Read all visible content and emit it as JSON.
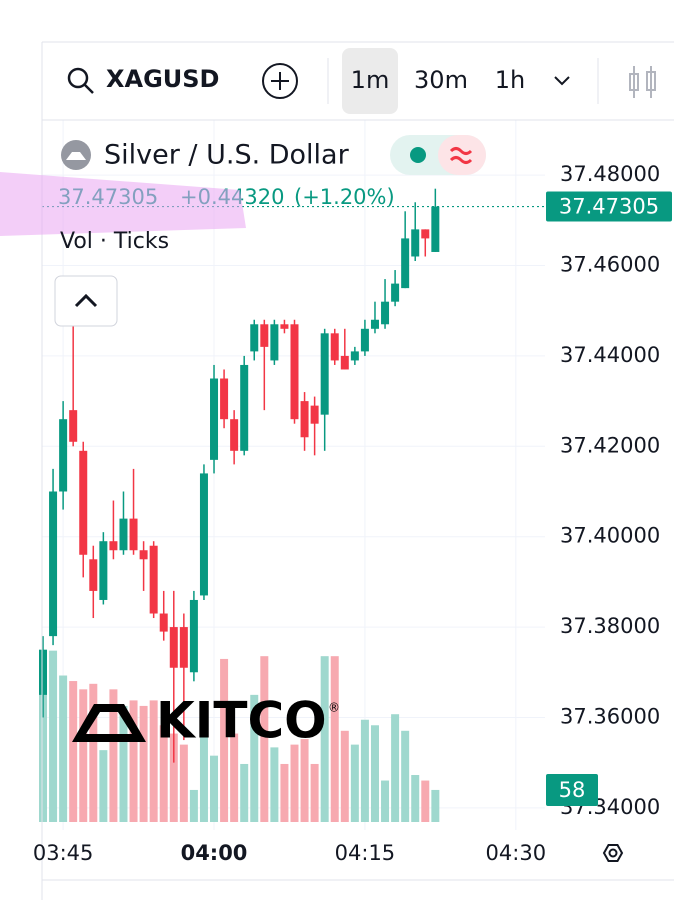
{
  "toolbar": {
    "symbol": "XAGUSD",
    "intervals": [
      "1m",
      "30m",
      "1h"
    ]
  },
  "chart_data": {
    "type": "candlestick",
    "title": "Silver / U.S. Dollar",
    "volume_label": "Vol · Ticks",
    "watermark": "KITCO",
    "watermark_mark": "®",
    "change": {
      "value": 0.4432,
      "label": "+0.44320"
    },
    "change_pct": {
      "value": 1.2,
      "label": "(+1.20%)"
    },
    "up_color": "#089981",
    "down_color": "#f23645",
    "up_volume_color": "#9fd8ce",
    "down_volume_color": "#f7a9b0",
    "x": [
      "03:43",
      "03:44",
      "03:45",
      "03:46",
      "03:47",
      "03:48",
      "03:49",
      "03:50",
      "03:51",
      "03:52",
      "03:53",
      "03:54",
      "03:55",
      "03:56",
      "03:57",
      "03:58",
      "03:59",
      "04:00",
      "04:01",
      "04:02",
      "04:03",
      "04:04",
      "04:05",
      "04:06",
      "04:07",
      "04:08",
      "04:09",
      "04:10",
      "04:11",
      "04:12",
      "04:13",
      "04:14",
      "04:15",
      "04:16",
      "04:17",
      "04:18",
      "04:19",
      "04:20",
      "04:21",
      "04:22"
    ],
    "open": [
      37.365,
      37.378,
      37.41,
      37.428,
      37.419,
      37.395,
      37.386,
      37.399,
      37.397,
      37.404,
      37.397,
      37.398,
      37.383,
      37.38,
      37.38,
      37.37,
      37.387,
      37.417,
      37.435,
      37.426,
      37.419,
      37.441,
      37.447,
      37.439,
      37.447,
      37.447,
      37.43,
      37.429,
      37.427,
      37.445,
      37.44,
      37.439,
      37.441,
      37.446,
      37.447,
      37.452,
      37.455,
      37.462,
      37.468,
      37.463
    ],
    "high": [
      37.378,
      37.415,
      37.43,
      37.448,
      37.421,
      37.398,
      37.401,
      37.408,
      37.41,
      37.415,
      37.399,
      37.399,
      37.388,
      37.388,
      37.383,
      37.388,
      37.416,
      37.438,
      37.437,
      37.428,
      37.44,
      37.448,
      37.448,
      37.448,
      37.448,
      37.448,
      37.432,
      37.431,
      37.446,
      37.446,
      37.446,
      37.442,
      37.448,
      37.452,
      37.457,
      37.459,
      37.472,
      37.474,
      37.468,
      37.477
    ],
    "low": [
      37.36,
      37.376,
      37.406,
      37.42,
      37.391,
      37.382,
      37.385,
      37.395,
      37.396,
      37.396,
      37.388,
      37.382,
      37.377,
      37.35,
      37.355,
      37.368,
      37.386,
      37.414,
      37.424,
      37.416,
      37.418,
      37.439,
      37.428,
      37.438,
      37.445,
      37.425,
      37.419,
      37.418,
      37.419,
      37.438,
      37.437,
      37.438,
      37.44,
      37.445,
      37.446,
      37.451,
      37.455,
      37.461,
      37.462,
      37.463
    ],
    "close": [
      37.375,
      37.41,
      37.426,
      37.421,
      37.396,
      37.388,
      37.399,
      37.397,
      37.404,
      37.397,
      37.395,
      37.383,
      37.379,
      37.371,
      37.371,
      37.386,
      37.414,
      37.435,
      37.426,
      37.419,
      37.438,
      37.447,
      37.442,
      37.447,
      37.446,
      37.426,
      37.422,
      37.425,
      37.445,
      37.439,
      37.437,
      37.441,
      37.446,
      37.448,
      37.452,
      37.456,
      37.466,
      37.468,
      37.466,
      37.47305
    ],
    "volume": [
      250,
      310,
      265,
      255,
      240,
      250,
      130,
      240,
      210,
      220,
      210,
      220,
      175,
      160,
      140,
      58,
      160,
      120,
      295,
      160,
      105,
      230,
      300,
      135,
      105,
      140,
      150,
      105,
      300,
      300,
      165,
      140,
      185,
      175,
      75,
      195,
      165,
      85,
      75,
      58
    ],
    "xlim": [
      "03:43",
      "04:33"
    ],
    "xticks": [
      "03:45",
      "04:00",
      "04:15",
      "04:30"
    ],
    "ylim": [
      37.3351,
      37.4922
    ],
    "yticks": [
      {
        "value": 37.48,
        "label": "37.48000"
      },
      {
        "value": 37.46,
        "label": "37.46000"
      },
      {
        "value": 37.44,
        "label": "37.44000"
      },
      {
        "value": 37.42,
        "label": "37.42000"
      },
      {
        "value": 37.4,
        "label": "37.40000"
      },
      {
        "value": 37.38,
        "label": "37.38000"
      },
      {
        "value": 37.36,
        "label": "37.36000"
      },
      {
        "value": 37.34,
        "label": "37.34000"
      }
    ],
    "y2lim": [
      0,
      1270
    ]
  }
}
